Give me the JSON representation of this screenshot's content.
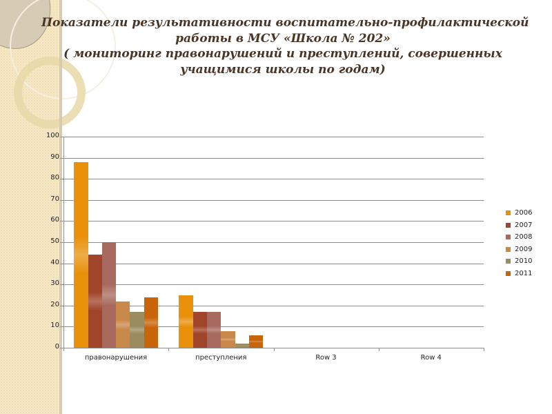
{
  "title": {
    "line1": "Показатели результативности воспитательно-профилактической",
    "line2": "работы в МСУ «Школа № 202»",
    "line3": "( мониторинг  правонарушений и преступлений, совершенных",
    "line4": "учащимися школы по годам)"
  },
  "colors": {
    "2006": "#E8900A",
    "2007": "#A0442A",
    "2008": "#A86A5E",
    "2009": "#C8884A",
    "2010": "#9A8C5E",
    "2011": "#C8640A"
  },
  "chart_data": {
    "type": "bar",
    "title": "Показатели результативности воспитательно-профилактической работы в МСУ «Школа № 202» ( мониторинг  правонарушений и преступлений, совершенных учащимися школы по годам)",
    "categories": [
      "правонарушения",
      "преступления",
      "Row 3",
      "Row 4"
    ],
    "series": [
      {
        "name": "2006",
        "values": [
          88,
          25,
          0,
          0
        ]
      },
      {
        "name": "2007",
        "values": [
          44,
          17,
          0,
          0
        ]
      },
      {
        "name": "2008",
        "values": [
          50,
          17,
          0,
          0
        ]
      },
      {
        "name": "2009",
        "values": [
          22,
          8,
          0,
          0
        ]
      },
      {
        "name": "2010",
        "values": [
          17,
          2,
          0,
          0
        ]
      },
      {
        "name": "2011",
        "values": [
          24,
          6,
          0,
          0
        ]
      }
    ],
    "xlabel": "",
    "ylabel": "",
    "ylim": [
      0,
      100
    ],
    "yticks": [
      "0",
      "10",
      "20",
      "30",
      "40",
      "50",
      "60",
      "70",
      "80",
      "90",
      "100"
    ],
    "grid": true,
    "legend_position": "right"
  }
}
